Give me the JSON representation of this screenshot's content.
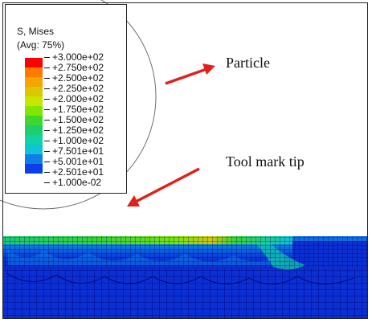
{
  "legend": {
    "variable": "S, Mises",
    "averaging": "(Avg: 75%)",
    "levels": [
      "+3.000e+02",
      "+2.750e+02",
      "+2.500e+02",
      "+2.250e+02",
      "+2.000e+02",
      "+1.750e+02",
      "+1.500e+02",
      "+1.250e+02",
      "+1.000e+02",
      "+7.501e+01",
      "+5.001e+01",
      "+2.501e+01",
      "+1.000e-02"
    ],
    "colors": [
      "#ff0000",
      "#ff7a00",
      "#f5a500",
      "#dcc800",
      "#c8e600",
      "#82e600",
      "#3ed72e",
      "#1ecd6e",
      "#12d1a8",
      "#0fc4d8",
      "#0e7fe6",
      "#0b3fea",
      "#0000cc"
    ]
  },
  "annotations": {
    "particle": "Particle",
    "tool_mark_tip": "Tool mark tip"
  },
  "colors": {
    "arrow": "#e0201b",
    "mesh_base": "#0b2fd0",
    "mesh_line": "#00007a",
    "particle_outline": "#707070"
  }
}
